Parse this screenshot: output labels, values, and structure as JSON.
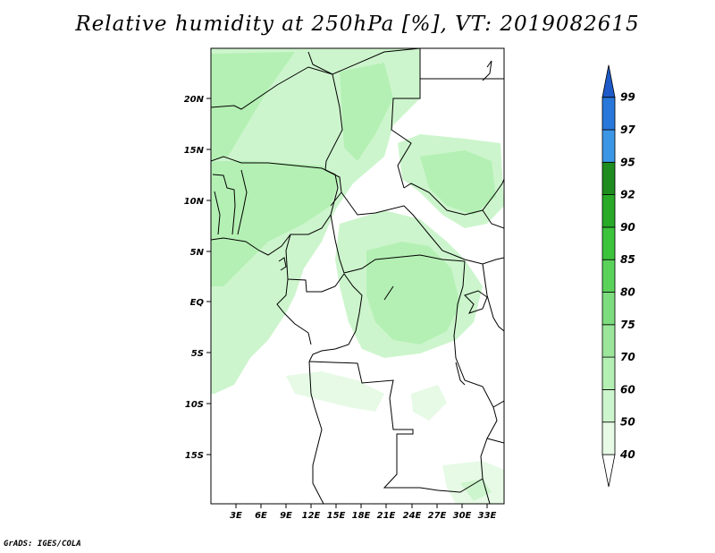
{
  "title": "Relative humidity at 250hPa [%], VT: 2019082615",
  "credit": "GrADS: IGES/COLA",
  "map": {
    "lat_labels": [
      "20N",
      "15N",
      "10N",
      "5N",
      "EQ",
      "5S",
      "10S",
      "15S"
    ],
    "lon_labels": [
      "3E",
      "6E",
      "9E",
      "12E",
      "15E",
      "18E",
      "21E",
      "24E",
      "27E",
      "30E",
      "33E"
    ]
  },
  "colorbar": {
    "levels": [
      "40",
      "50",
      "60",
      "70",
      "75",
      "80",
      "85",
      "90",
      "92",
      "95",
      "97",
      "99"
    ],
    "colors": [
      "#ffffff",
      "#e6fae6",
      "#cdf5cd",
      "#b4f0b4",
      "#9be69b",
      "#7ddc7d",
      "#5ad25a",
      "#3cc33c",
      "#28aa28",
      "#1e8c1e",
      "#3c96e6",
      "#2878dc",
      "#1e5ac8"
    ]
  }
}
